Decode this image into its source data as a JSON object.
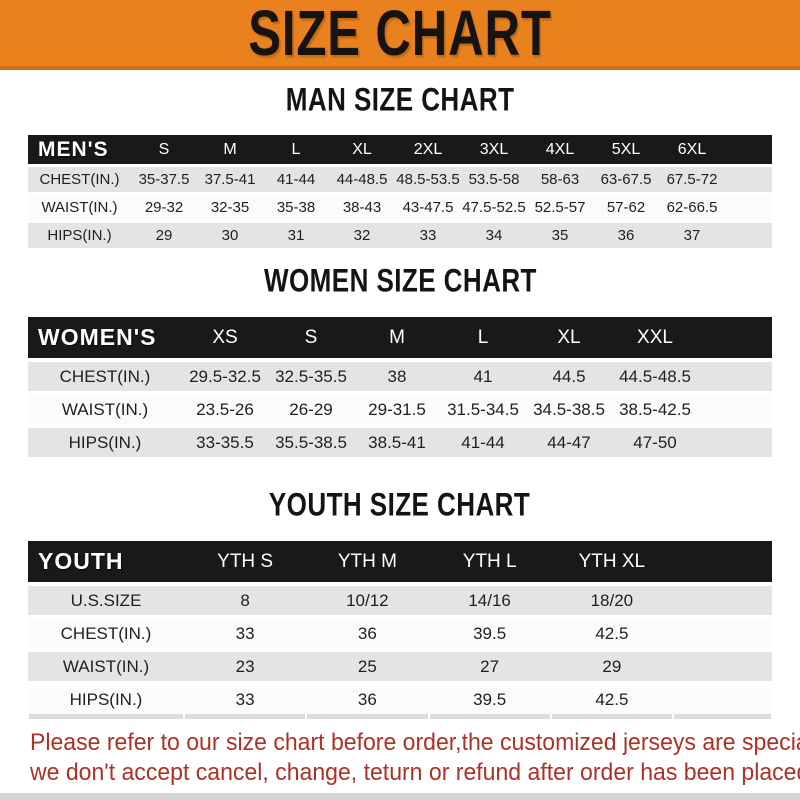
{
  "banner": {
    "title": "SIZE CHART"
  },
  "colors": {
    "banner_orange": "#e8811e",
    "banner_orange_edge": "#cf6d15",
    "header_black": "#191919",
    "row_gray": "#e4e4e4",
    "note_red": "#ab3226"
  },
  "sections": [
    {
      "heading": "MAN SIZE CHART",
      "table": {
        "header_label": "MEN'S",
        "columns": [
          "S",
          "M",
          "L",
          "XL",
          "2XL",
          "3XL",
          "4XL",
          "5XL",
          "6XL"
        ],
        "rows": [
          {
            "label": "CHEST(IN.)",
            "values": [
              "35-37.5",
              "37.5-41",
              "41-44",
              "44-48.5",
              "48.5-53.5",
              "53.5-58",
              "58-63",
              "63-67.5",
              "67.5-72"
            ]
          },
          {
            "label": "WAIST(IN.)",
            "values": [
              "29-32",
              "32-35",
              "35-38",
              "38-43",
              "43-47.5",
              "47.5-52.5",
              "52.5-57",
              "57-62",
              "62-66.5"
            ]
          },
          {
            "label": "HIPS(IN.)",
            "values": [
              "29",
              "30",
              "31",
              "32",
              "33",
              "34",
              "35",
              "36",
              "37"
            ]
          }
        ]
      }
    },
    {
      "heading": "WOMEN SIZE CHART",
      "table": {
        "header_label": "WOMEN'S",
        "columns": [
          "XS",
          "S",
          "M",
          "L",
          "XL",
          "XXL"
        ],
        "rows": [
          {
            "label": "CHEST(IN.)",
            "values": [
              "29.5-32.5",
              "32.5-35.5",
              "38",
              "41",
              "44.5",
              "44.5-48.5"
            ]
          },
          {
            "label": "WAIST(IN.)",
            "values": [
              "23.5-26",
              "26-29",
              "29-31.5",
              "31.5-34.5",
              "34.5-38.5",
              "38.5-42.5"
            ]
          },
          {
            "label": "HIPS(IN.)",
            "values": [
              "33-35.5",
              "35.5-38.5",
              "38.5-41",
              "41-44",
              "44-47",
              "47-50"
            ]
          }
        ]
      }
    },
    {
      "heading": "YOUTH SIZE CHART",
      "table": {
        "header_label": "YOUTH",
        "columns": [
          "YTH S",
          "YTH M",
          "YTH L",
          "YTH XL"
        ],
        "rows": [
          {
            "label": "U.S.SIZE",
            "values": [
              "8",
              "10/12",
              "14/16",
              "18/20"
            ]
          },
          {
            "label": "CHEST(IN.)",
            "values": [
              "33",
              "36",
              "39.5",
              "42.5"
            ]
          },
          {
            "label": "WAIST(IN.)",
            "values": [
              "23",
              "25",
              "27",
              "29"
            ]
          },
          {
            "label": "HIPS(IN.)",
            "values": [
              "33",
              "36",
              "39.5",
              "42.5"
            ]
          }
        ]
      }
    }
  ],
  "footer": {
    "line1": "Please refer to our size chart before order,the customized jerseys are special products,",
    "line2": "we don't accept cancel, change, teturn or refund after order has been placed!"
  }
}
